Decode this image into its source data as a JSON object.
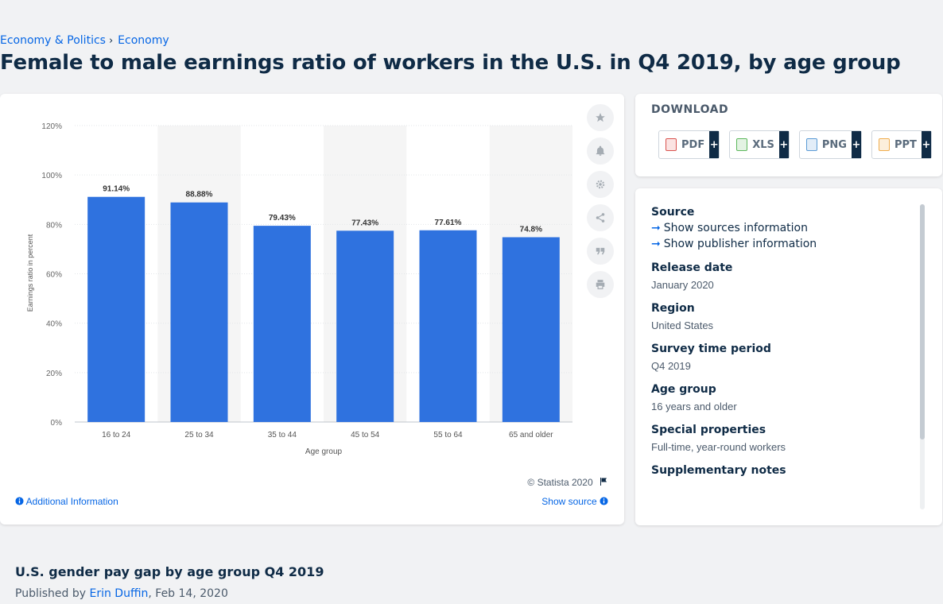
{
  "breadcrumb": {
    "item1": "Economy & Politics",
    "separator": "›",
    "item2": "Economy"
  },
  "page_title": "Female to male earnings ratio of workers in the U.S. in Q4 2019, by age group",
  "chart_data": {
    "type": "bar",
    "categories": [
      "16 to 24",
      "25 to 34",
      "35 to 44",
      "45 to 54",
      "55 to 64",
      "65 and older"
    ],
    "values": [
      91.14,
      88.88,
      79.43,
      77.43,
      77.61,
      74.8
    ],
    "data_labels": [
      "91.14%",
      "88.88%",
      "79.43%",
      "77.43%",
      "77.61%",
      "74.8%"
    ],
    "xlabel": "Age group",
    "ylabel": "Earnings ratio in percent",
    "ylim": [
      0,
      120
    ],
    "yticks": [
      "0%",
      "20%",
      "40%",
      "60%",
      "80%",
      "100%",
      "120%"
    ],
    "grid": true,
    "bar_color": "#2f72df"
  },
  "chart_footer": {
    "copyright": "© Statista 2020",
    "additional_info": "Additional Information",
    "show_source": "Show source"
  },
  "toolbar": {
    "icons": [
      "star-icon",
      "bell-icon",
      "gear-icon",
      "share-icon",
      "quote-icon",
      "print-icon"
    ]
  },
  "download": {
    "title": "DOWNLOAD",
    "buttons": [
      {
        "label": "PDF",
        "plus": "+",
        "color": "#d9534f"
      },
      {
        "label": "XLS",
        "plus": "+",
        "color": "#5cb85c"
      },
      {
        "label": "PNG",
        "plus": "+",
        "color": "#5b9bd5"
      },
      {
        "label": "PPT",
        "plus": "+",
        "color": "#f0ad4e"
      }
    ]
  },
  "meta": {
    "source_heading": "Source",
    "show_sources": "Show sources information",
    "show_publisher": "Show publisher information",
    "release_heading": "Release date",
    "release_value": "January 2020",
    "region_heading": "Region",
    "region_value": "United States",
    "survey_heading": "Survey time period",
    "survey_value": "Q4 2019",
    "age_heading": "Age group",
    "age_value": "16 years and older",
    "special_heading": "Special properties",
    "special_value": "Full-time, year-round workers",
    "supp_heading": "Supplementary notes"
  },
  "article": {
    "title": "U.S. gender pay gap by age group Q4 2019",
    "published_prefix": "Published by",
    "author": "Erin Duffin",
    "date": ", Feb 14, 2020"
  }
}
